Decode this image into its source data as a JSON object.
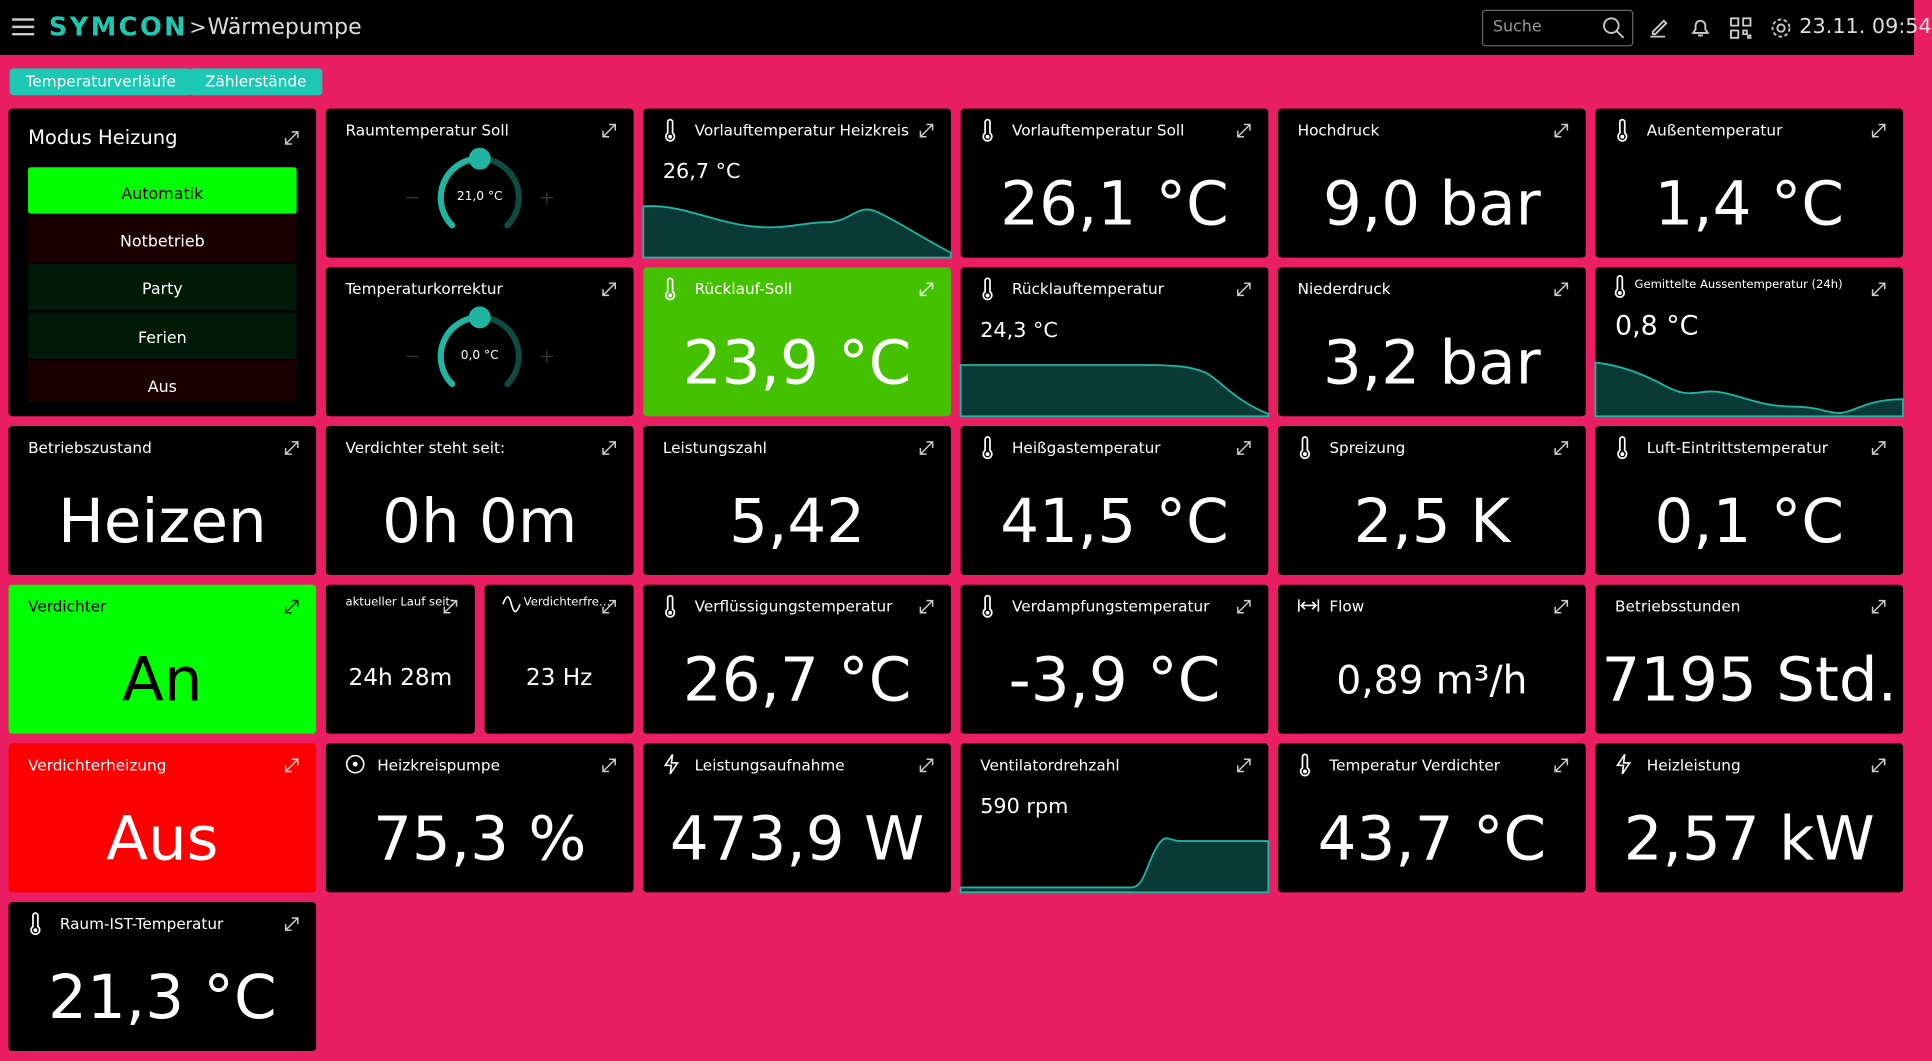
{
  "header": {
    "brand": "SYMCON",
    "separator": ">",
    "page": "Wärmepumpe",
    "search_placeholder": "Suche",
    "datetime": "23.11. 09:54"
  },
  "tabs": [
    "Temperaturverläufe",
    "Zählerstände"
  ],
  "tiles": [
    {
      "title": "Modus Heizung",
      "options": [
        "Automatik",
        "Notbetrieb",
        "Party",
        "Ferien",
        "Aus"
      ]
    },
    {
      "title": "Raumtemperatur Soll",
      "value": "21,0 °C"
    },
    {
      "title": "Vorlauftemperatur Heizkreis",
      "value": "26,7 °C"
    },
    {
      "title": "Vorlauftemperatur Soll",
      "value": "26,1 °C"
    },
    {
      "title": "Hochdruck",
      "value": "9,0 bar"
    },
    {
      "title": "Außentemperatur",
      "value": "1,4 °C"
    },
    {
      "title": "Temperaturkorrektur",
      "value": "0,0 °C"
    },
    {
      "title": "Rücklauf-Soll",
      "value": "23,9 °C"
    },
    {
      "title": "Rücklauftemperatur",
      "value": "24,3 °C"
    },
    {
      "title": "Niederdruck",
      "value": "3,2 bar"
    },
    {
      "title": "Gemittelte Aussentemperatur (24h)",
      "value": "0,8 °C"
    },
    {
      "title": "Betriebszustand",
      "value": "Heizen"
    },
    {
      "title": "Verdichter steht seit:",
      "value": "0h 0m"
    },
    {
      "title": "Leistungszahl",
      "value": "5,42"
    },
    {
      "title": "Heißgastemperatur",
      "value": "41,5 °C"
    },
    {
      "title": "Spreizung",
      "value": "2,5 K"
    },
    {
      "title": "Luft-Eintrittstemperatur",
      "value": "0,1 °C"
    },
    {
      "title": "Verdichter",
      "value": "An"
    },
    {
      "title": "aktueller Lauf seit:",
      "value": "24h 28m"
    },
    {
      "title": "Verdichterfre…",
      "value": "23 Hz"
    },
    {
      "title": "Verflüssigungstemperatur",
      "value": "26,7 °C"
    },
    {
      "title": "Verdampfungstemperatur",
      "value": "-3,9 °C"
    },
    {
      "title": "Flow",
      "value": "0,89 m³/h"
    },
    {
      "title": "Betriebsstunden",
      "value": "7195 Std."
    },
    {
      "title": "Verdichterheizung",
      "value": "Aus"
    },
    {
      "title": "Heizkreispumpe",
      "value": "75,3 %"
    },
    {
      "title": "Leistungsaufnahme",
      "value": "473,9 W"
    },
    {
      "title": "Ventilatordrehzahl",
      "value": "590 rpm"
    },
    {
      "title": "Temperatur Verdichter",
      "value": "43,7 °C"
    },
    {
      "title": "Heizleistung",
      "value": "2,57 kW"
    },
    {
      "title": "Raum-IST-Temperatur",
      "value": "21,3 °C"
    }
  ]
}
